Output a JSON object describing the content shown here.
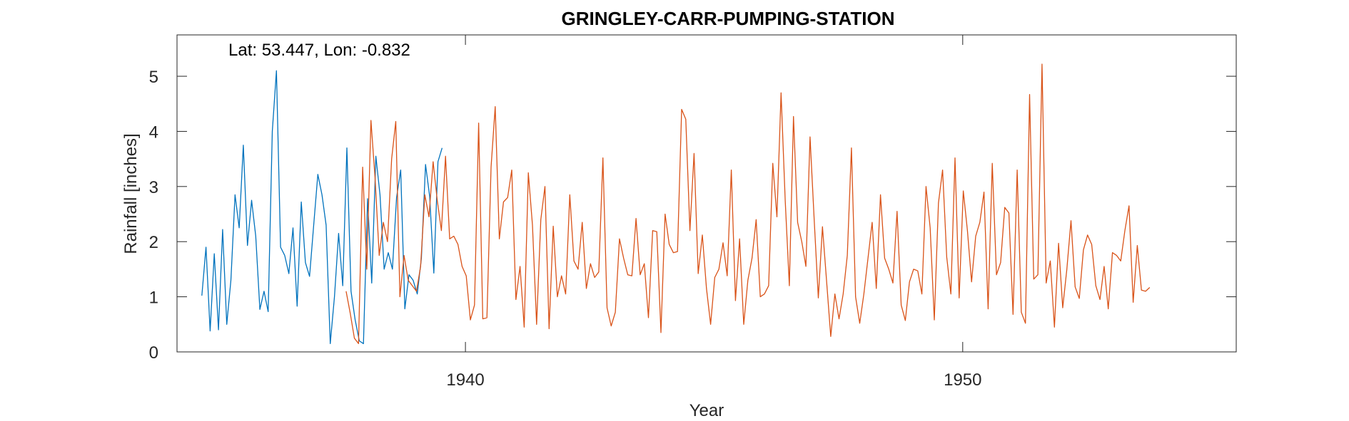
{
  "chart_data": {
    "type": "line",
    "title": "GRINGLEY-CARR-PUMPING-STATION",
    "xlabel": "Year",
    "ylabel": "Rainfall [inches]",
    "annotation": "Lat: 53.447, Lon: -0.832",
    "xlim": [
      1934.2,
      1955.5
    ],
    "ylim": [
      0,
      5.75
    ],
    "xticks": [
      1940,
      1950
    ],
    "yticks": [
      0,
      1,
      2,
      3,
      4,
      5
    ],
    "grid": false,
    "series": [
      {
        "color": "#0072BD",
        "start": 1934.7,
        "step": 0.0833,
        "values": [
          1.02,
          1.9,
          0.38,
          1.78,
          0.4,
          2.22,
          0.5,
          1.3,
          2.85,
          2.25,
          3.75,
          1.93,
          2.75,
          2.1,
          0.77,
          1.1,
          0.73,
          4.0,
          5.1,
          1.9,
          1.75,
          1.42,
          2.25,
          0.83,
          2.72,
          1.62,
          1.37,
          2.3,
          3.22,
          2.85,
          2.3,
          0.15,
          1.0,
          2.15,
          1.2,
          3.7,
          1.1,
          0.58,
          0.2,
          0.15,
          2.78,
          1.25,
          3.55,
          2.85,
          1.5,
          1.8,
          1.5,
          2.8,
          3.3,
          0.78,
          1.4,
          1.3,
          1.05,
          1.7,
          3.4,
          2.82,
          1.43,
          3.45,
          3.7
        ]
      },
      {
        "color": "#D95319",
        "start": 1937.6,
        "step": 0.0833,
        "values": [
          1.1,
          0.7,
          0.25,
          0.15,
          3.35,
          1.5,
          4.2,
          3.15,
          1.75,
          2.35,
          2.0,
          3.5,
          4.18,
          1.0,
          1.75,
          1.3,
          1.2,
          1.1,
          1.55,
          2.85,
          2.45,
          3.45,
          2.75,
          2.2,
          3.55,
          2.05,
          2.1,
          1.95,
          1.55,
          1.38,
          0.58,
          0.85,
          4.15,
          0.6,
          0.62,
          3.35,
          4.45,
          2.05,
          2.72,
          2.8,
          3.3,
          0.95,
          1.55,
          0.45,
          3.25,
          2.3,
          0.5,
          2.4,
          3.0,
          0.42,
          2.28,
          1.0,
          1.38,
          1.05,
          2.85,
          1.65,
          1.5,
          2.35,
          1.15,
          1.6,
          1.35,
          1.45,
          3.52,
          0.8,
          0.47,
          0.72,
          2.05,
          1.7,
          1.4,
          1.38,
          2.42,
          1.4,
          1.6,
          0.62,
          2.2,
          2.18,
          0.35,
          2.5,
          1.95,
          1.8,
          1.82,
          4.4,
          4.22,
          2.2,
          3.6,
          1.42,
          2.12,
          1.15,
          0.5,
          1.35,
          1.5,
          1.98,
          1.38,
          3.3,
          0.93,
          2.05,
          0.5,
          1.3,
          1.7,
          2.4,
          1.0,
          1.05,
          1.2,
          3.42,
          2.45,
          4.7,
          2.75,
          1.2,
          4.27,
          2.35,
          2.0,
          1.55,
          3.9,
          2.4,
          0.98,
          2.27,
          1.28,
          0.28,
          1.05,
          0.6,
          1.05,
          1.75,
          3.7,
          1.0,
          0.52,
          1.05,
          1.7,
          2.35,
          1.15,
          2.85,
          1.7,
          1.5,
          1.25,
          2.55,
          0.85,
          0.57,
          1.27,
          1.5,
          1.47,
          1.05,
          3.0,
          2.25,
          0.58,
          2.7,
          3.3,
          1.72,
          1.05,
          3.52,
          0.98,
          2.92,
          2.2,
          1.27,
          2.1,
          2.35,
          2.9,
          0.78,
          3.42,
          1.4,
          1.62,
          2.62,
          2.52,
          0.68,
          3.3,
          0.72,
          0.52,
          4.67,
          1.32,
          1.4,
          5.22,
          1.25,
          1.65,
          0.45,
          1.97,
          0.8,
          1.5,
          2.38,
          1.18,
          0.97,
          1.85,
          2.12,
          1.95,
          1.2,
          0.95,
          1.55,
          0.78,
          1.8,
          1.75,
          1.65,
          2.2,
          2.65,
          0.9,
          1.93,
          1.12,
          1.1,
          1.17
        ]
      }
    ]
  }
}
